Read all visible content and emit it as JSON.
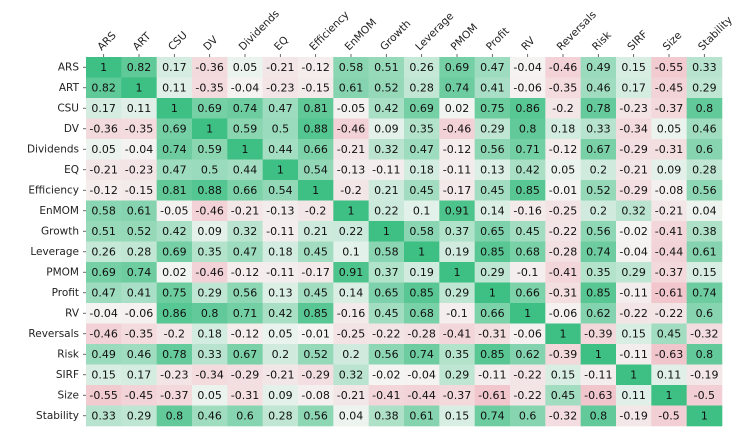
{
  "chart_data": {
    "type": "heatmap",
    "title": "",
    "xlabel": "",
    "ylabel": "",
    "labels": [
      "ARS",
      "ART",
      "CSU",
      "DV",
      "Dividends",
      "EQ",
      "Efficiency",
      "EnMOM",
      "Growth",
      "Leverage",
      "PMOM",
      "Profit",
      "RV",
      "Reversals",
      "Risk",
      "SIRF",
      "Size",
      "Stability"
    ],
    "matrix": [
      [
        1.0,
        0.82,
        0.17,
        -0.36,
        0.05,
        -0.21,
        -0.12,
        0.58,
        0.51,
        0.26,
        0.69,
        0.47,
        -0.04,
        -0.46,
        0.49,
        0.15,
        -0.55,
        0.33
      ],
      [
        0.82,
        1.0,
        0.11,
        -0.35,
        -0.04,
        -0.23,
        -0.15,
        0.61,
        0.52,
        0.28,
        0.74,
        0.41,
        -0.06,
        -0.35,
        0.46,
        0.17,
        -0.45,
        0.29
      ],
      [
        0.17,
        0.11,
        1.0,
        0.69,
        0.74,
        0.47,
        0.81,
        -0.05,
        0.42,
        0.69,
        0.02,
        0.75,
        0.86,
        -0.2,
        0.78,
        -0.23,
        -0.37,
        0.8
      ],
      [
        -0.36,
        -0.35,
        0.69,
        1.0,
        0.59,
        0.5,
        0.88,
        -0.46,
        0.09,
        0.35,
        -0.46,
        0.29,
        0.8,
        0.18,
        0.33,
        -0.34,
        0.05,
        0.46
      ],
      [
        0.05,
        -0.04,
        0.74,
        0.59,
        1.0,
        0.44,
        0.66,
        -0.21,
        0.32,
        0.47,
        -0.12,
        0.56,
        0.71,
        -0.12,
        0.67,
        -0.29,
        -0.31,
        0.6
      ],
      [
        -0.21,
        -0.23,
        0.47,
        0.5,
        0.44,
        1.0,
        0.54,
        -0.13,
        -0.11,
        0.18,
        -0.11,
        0.13,
        0.42,
        0.05,
        0.2,
        -0.21,
        0.09,
        0.28
      ],
      [
        -0.12,
        -0.15,
        0.81,
        0.88,
        0.66,
        0.54,
        1.0,
        -0.2,
        0.21,
        0.45,
        -0.17,
        0.45,
        0.85,
        -0.01,
        0.52,
        -0.29,
        -0.08,
        0.56
      ],
      [
        0.58,
        0.61,
        -0.05,
        -0.46,
        -0.21,
        -0.13,
        -0.2,
        1.0,
        0.22,
        0.1,
        0.91,
        0.14,
        -0.16,
        -0.25,
        0.2,
        0.32,
        -0.21,
        0.04
      ],
      [
        0.51,
        0.52,
        0.42,
        0.09,
        0.32,
        -0.11,
        0.21,
        0.22,
        1.0,
        0.58,
        0.37,
        0.65,
        0.45,
        -0.22,
        0.56,
        -0.02,
        -0.41,
        0.38
      ],
      [
        0.26,
        0.28,
        0.69,
        0.35,
        0.47,
        0.18,
        0.45,
        0.1,
        0.58,
        1.0,
        0.19,
        0.85,
        0.68,
        -0.28,
        0.74,
        -0.04,
        -0.44,
        0.61
      ],
      [
        0.69,
        0.74,
        0.02,
        -0.46,
        -0.12,
        -0.11,
        -0.17,
        0.91,
        0.37,
        0.19,
        1.0,
        0.29,
        -0.1,
        -0.41,
        0.35,
        0.29,
        -0.37,
        0.15
      ],
      [
        0.47,
        0.41,
        0.75,
        0.29,
        0.56,
        0.13,
        0.45,
        0.14,
        0.65,
        0.85,
        0.29,
        1.0,
        0.66,
        -0.31,
        0.85,
        -0.11,
        -0.61,
        0.74
      ],
      [
        -0.04,
        -0.06,
        0.86,
        0.8,
        0.71,
        0.42,
        0.85,
        -0.16,
        0.45,
        0.68,
        -0.1,
        0.66,
        1.0,
        -0.06,
        0.62,
        -0.22,
        -0.22,
        0.6
      ],
      [
        -0.46,
        -0.35,
        -0.2,
        0.18,
        -0.12,
        0.05,
        -0.01,
        -0.25,
        -0.22,
        -0.28,
        -0.41,
        -0.31,
        -0.06,
        1.0,
        -0.39,
        0.15,
        0.45,
        -0.32
      ],
      [
        0.49,
        0.46,
        0.78,
        0.33,
        0.67,
        0.2,
        0.52,
        0.2,
        0.56,
        0.74,
        0.35,
        0.85,
        0.62,
        -0.39,
        1.0,
        -0.11,
        -0.63,
        0.8
      ],
      [
        0.15,
        0.17,
        -0.23,
        -0.34,
        -0.29,
        -0.21,
        -0.29,
        0.32,
        -0.02,
        -0.04,
        0.29,
        -0.11,
        -0.22,
        0.15,
        -0.11,
        1.0,
        0.11,
        -0.19
      ],
      [
        -0.55,
        -0.45,
        -0.37,
        0.05,
        -0.31,
        0.09,
        -0.08,
        -0.21,
        -0.41,
        -0.44,
        -0.37,
        -0.61,
        -0.22,
        0.45,
        -0.63,
        0.11,
        1.0,
        -0.5
      ],
      [
        0.33,
        0.29,
        0.8,
        0.46,
        0.6,
        0.28,
        0.56,
        0.04,
        0.38,
        0.61,
        0.15,
        0.74,
        0.6,
        -0.32,
        0.8,
        -0.19,
        -0.5,
        1.0
      ]
    ],
    "value_range": [
      -1,
      1
    ],
    "colors": {
      "negative": "#f0a8b4",
      "neutral": "#f4f6f4",
      "positive": "#3ebf83"
    },
    "legend": "none",
    "grid": false
  }
}
